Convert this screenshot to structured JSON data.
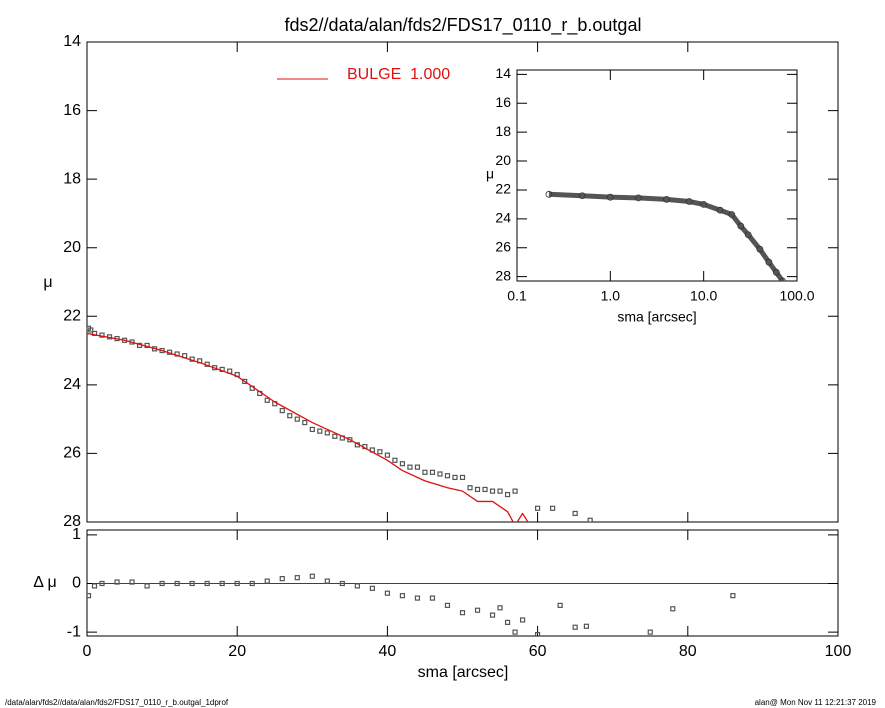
{
  "chart_data": [
    {
      "type": "scatter",
      "title": "fds2//data/alan/fds2/FDS17_0110_r_b.outgal",
      "y_label": "μ",
      "xlim": [
        0,
        100
      ],
      "ylim": [
        28,
        14
      ],
      "yticks": [
        14,
        16,
        18,
        20,
        22,
        24,
        26,
        28
      ],
      "series": [
        {
          "name": null,
          "marker": "square",
          "color": "#555555",
          "x": [
            0.2,
            0.5,
            1,
            2,
            3,
            4,
            5,
            6,
            7,
            8,
            9,
            10,
            11,
            12,
            13,
            14,
            15,
            16,
            17,
            18,
            19,
            20,
            21,
            22,
            23,
            24,
            25,
            26,
            27,
            28,
            29,
            30,
            31,
            32,
            33,
            34,
            35,
            36,
            37,
            38,
            39,
            40,
            41,
            42,
            43,
            44,
            45,
            46,
            47,
            48,
            49,
            50,
            51,
            52,
            53,
            54,
            55,
            56,
            57,
            60,
            62,
            65,
            67
          ],
          "values": [
            22.35,
            22.4,
            22.5,
            22.55,
            22.6,
            22.65,
            22.7,
            22.75,
            22.85,
            22.85,
            22.95,
            23.0,
            23.05,
            23.1,
            23.15,
            23.25,
            23.3,
            23.4,
            23.5,
            23.55,
            23.6,
            23.7,
            23.9,
            24.1,
            24.25,
            24.45,
            24.55,
            24.75,
            24.9,
            25.0,
            25.1,
            25.3,
            25.35,
            25.4,
            25.5,
            25.55,
            25.6,
            25.75,
            25.8,
            25.9,
            25.95,
            26.05,
            26.2,
            26.3,
            26.4,
            26.4,
            26.55,
            26.55,
            26.6,
            26.65,
            26.7,
            26.7,
            27.0,
            27.05,
            27.05,
            27.1,
            27.1,
            27.2,
            27.1,
            27.6,
            27.6,
            27.75,
            27.95
          ]
        },
        {
          "name": "BULGE  1.000",
          "marker": "line",
          "color": "#e01010",
          "x": [
            0,
            5,
            10,
            15,
            20,
            25,
            30,
            35,
            40,
            42,
            45,
            48,
            50,
            52,
            54,
            56,
            57,
            58,
            59
          ],
          "values": [
            22.5,
            22.7,
            23.0,
            23.35,
            23.75,
            24.5,
            25.1,
            25.6,
            26.2,
            26.5,
            26.8,
            27.0,
            27.1,
            27.4,
            27.4,
            27.7,
            28.1,
            27.75,
            28.1
          ]
        }
      ]
    },
    {
      "type": "scatter",
      "x_label": "sma [arcsec]",
      "y_label": "Δ μ",
      "xlim": [
        0,
        100
      ],
      "xticks": [
        0,
        20,
        40,
        60,
        80,
        100
      ],
      "ylim": [
        -1.08,
        1.1
      ],
      "yticks": [
        -1,
        0,
        1
      ],
      "series": [
        {
          "name": null,
          "marker": "square",
          "color": "#555555",
          "x": [
            0.2,
            1,
            2,
            4,
            6,
            8,
            10,
            12,
            14,
            16,
            18,
            20,
            22,
            24,
            26,
            28,
            30,
            32,
            34,
            36,
            38,
            40,
            42,
            44,
            46,
            48,
            50,
            52,
            54,
            55,
            56,
            57,
            58,
            60,
            63,
            65,
            66.5,
            75,
            78,
            86
          ],
          "values": [
            -0.25,
            -0.05,
            0.0,
            0.03,
            0.03,
            -0.05,
            0.0,
            0.0,
            0.0,
            0.0,
            0.0,
            0.0,
            0.0,
            0.05,
            0.1,
            0.12,
            0.15,
            0.05,
            0.0,
            -0.05,
            -0.1,
            -0.2,
            -0.25,
            -0.3,
            -0.3,
            -0.45,
            -0.6,
            -0.55,
            -0.65,
            -0.5,
            -0.8,
            -1.0,
            -0.75,
            -1.05,
            -0.45,
            -0.9,
            -0.88,
            -1.0,
            -0.52,
            -0.25
          ]
        }
      ]
    },
    {
      "type": "scatter",
      "x_label": "sma [arcsec]",
      "y_label": "μ",
      "xlog": true,
      "xlim": [
        0.1,
        100
      ],
      "xticks": [
        0.1,
        {
          "value": 1,
          "label": "1.0"
        },
        {
          "value": 10,
          "label": "10.0"
        },
        {
          "value": 100,
          "label": "100.0"
        }
      ],
      "ylim": [
        28.3,
        13.7
      ],
      "yticks": [
        14,
        16,
        18,
        20,
        22,
        24,
        26,
        28
      ],
      "series": [
        {
          "name": null,
          "marker": "circle",
          "color": "#555555",
          "x": [
            0.22,
            0.5,
            1,
            2,
            4,
            7,
            10,
            15,
            20,
            25,
            30,
            40,
            50,
            60,
            70
          ],
          "values": [
            22.3,
            22.4,
            22.5,
            22.55,
            22.65,
            22.8,
            23.0,
            23.4,
            23.7,
            24.5,
            25.1,
            26.1,
            27.0,
            27.7,
            28.3
          ]
        }
      ]
    }
  ],
  "footer": {
    "left": "/data/alan/fds2//data/alan/fds2/FDS17_0110_r_b.outgal_1dprof",
    "right": "alan@  Mon Nov 11 12:21:37 2019"
  }
}
